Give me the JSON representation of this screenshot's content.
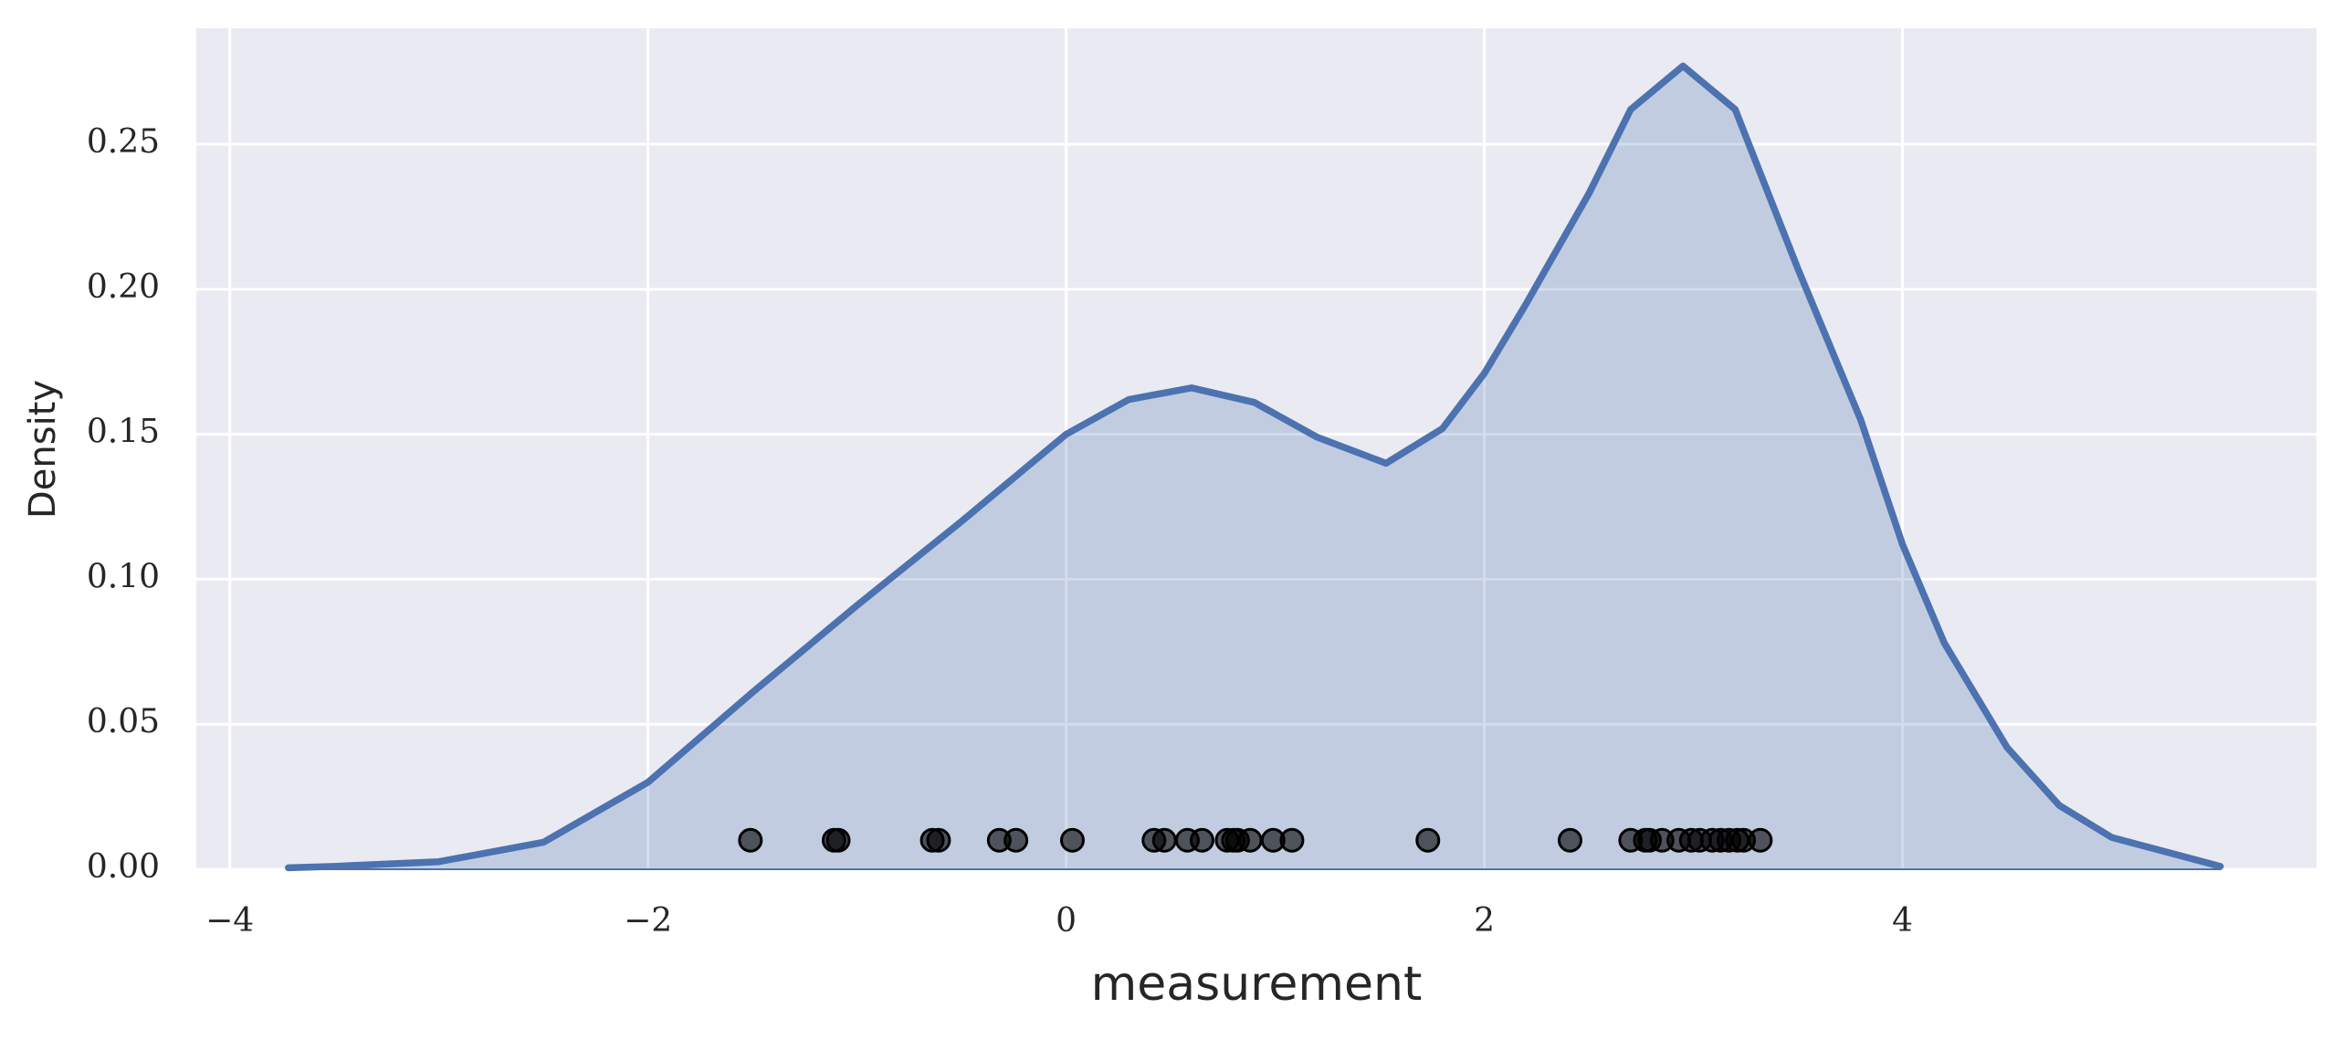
{
  "chart_data": {
    "type": "kde",
    "xlabel": "measurement",
    "ylabel": "Density",
    "xlim": [
      -4.16,
      5.98
    ],
    "ylim": [
      0,
      0.29
    ],
    "xticks": [
      {
        "value": -4,
        "label": "−4"
      },
      {
        "value": -2,
        "label": "−2"
      },
      0,
      2,
      4
    ],
    "yticks": [
      {
        "value": 0,
        "label": "0.00"
      },
      0.05,
      {
        "value": 0.1,
        "label": "0.10"
      },
      0.15,
      {
        "value": 0.2,
        "label": "0.20"
      },
      0.25
    ],
    "grid": true,
    "background": "#eaeaf2",
    "series": [
      {
        "type": "area",
        "color": "#4c72b0",
        "x": [
          -3.72,
          -3.5,
          -3,
          -2.5,
          -2,
          -1.5,
          -1,
          -0.5,
          0,
          0.3,
          0.6,
          0.9,
          1.2,
          1.53,
          1.8,
          2,
          2.2,
          2.5,
          2.7,
          2.95,
          3.2,
          3.5,
          3.8,
          4,
          4.2,
          4.5,
          4.75,
          5,
          5.52
        ],
        "values": [
          0.0005,
          0.001,
          0.0026,
          0.0093,
          0.03,
          0.061,
          0.091,
          0.12,
          0.15,
          0.162,
          0.166,
          0.161,
          0.149,
          0.14,
          0.152,
          0.171,
          0.195,
          0.233,
          0.262,
          0.277,
          0.262,
          0.207,
          0.155,
          0.112,
          0.078,
          0.042,
          0.022,
          0.011,
          0.001
        ]
      },
      {
        "type": "scatter",
        "color": "#000000",
        "x": [
          -1.51,
          -1.11,
          -1.09,
          -0.64,
          -0.61,
          -0.32,
          -0.24,
          0.03,
          0.42,
          0.47,
          0.58,
          0.65,
          0.77,
          0.8,
          0.82,
          0.88,
          0.99,
          1.08,
          1.73,
          2.41,
          2.7,
          2.77,
          2.79,
          2.85,
          2.93,
          2.99,
          3.03,
          3.09,
          3.13,
          3.17,
          3.21,
          3.24,
          3.32
        ],
        "values": [
          0.01,
          0.01,
          0.01,
          0.01,
          0.01,
          0.01,
          0.01,
          0.01,
          0.01,
          0.01,
          0.01,
          0.01,
          0.01,
          0.01,
          0.01,
          0.01,
          0.01,
          0.01,
          0.01,
          0.01,
          0.01,
          0.01,
          0.01,
          0.01,
          0.01,
          0.01,
          0.01,
          0.01,
          0.01,
          0.01,
          0.01,
          0.01,
          0.01
        ]
      }
    ]
  }
}
